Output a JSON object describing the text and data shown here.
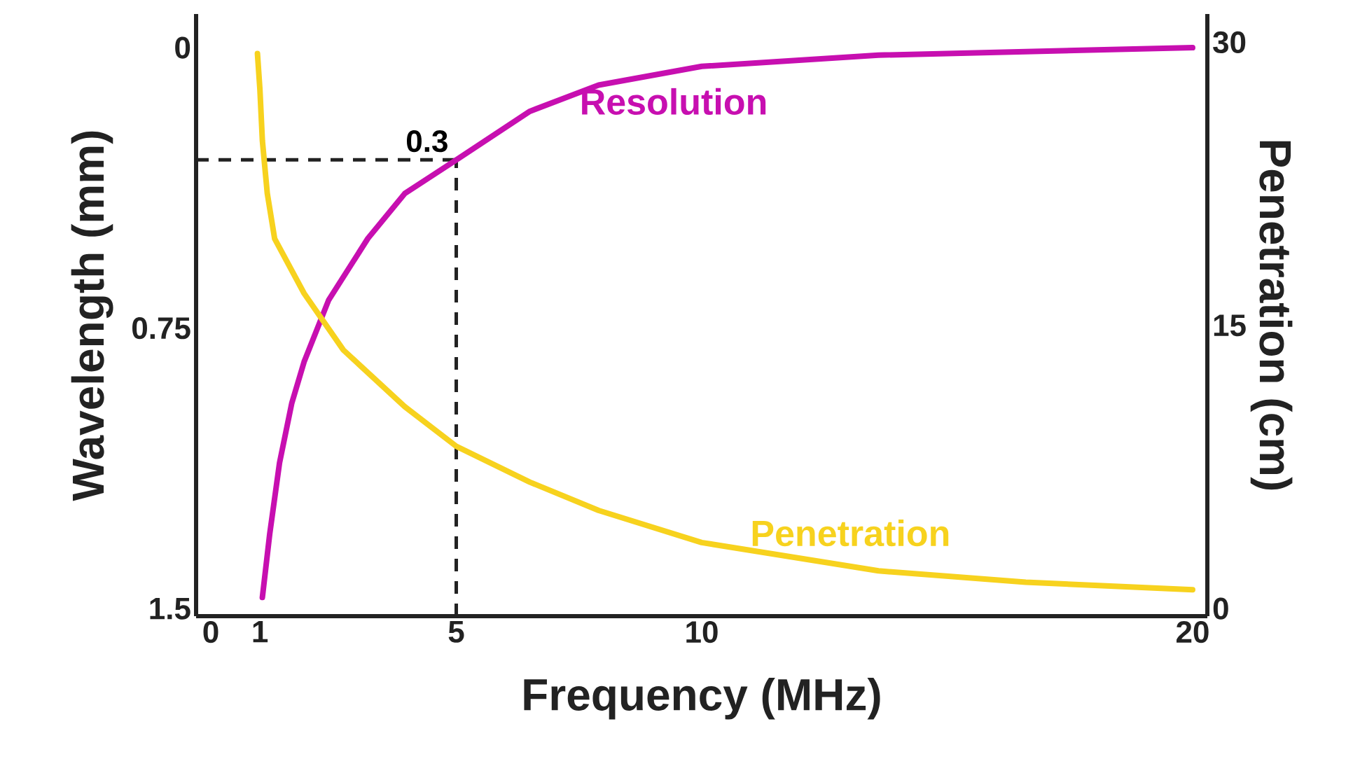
{
  "chart_data": {
    "type": "line",
    "xlabel": "Frequency (MHz)",
    "ylabel": "Wavelength (mm)",
    "y2label": "Penetration (cm)",
    "xlim": [
      -0.3,
      20.3
    ],
    "xticks": [
      0,
      1,
      5,
      10,
      20
    ],
    "ylim": [
      1.52,
      -0.09
    ],
    "yticks": [
      0,
      0.75,
      1.5
    ],
    "y2lim": [
      -0.4,
      31.5
    ],
    "y2ticks": [
      0,
      15,
      30
    ],
    "series": [
      {
        "name": "Resolution",
        "color": "#c70fb0",
        "x": [
          1.05,
          1.2,
          1.4,
          1.65,
          1.9,
          2.4,
          3.2,
          3.95,
          5,
          6.5,
          7.9,
          10,
          13.6,
          20
        ],
        "values": [
          1.47,
          1.3,
          1.11,
          0.95,
          0.84,
          0.675,
          0.51,
          0.39,
          0.3,
          0.17,
          0.1,
          0.05,
          0.02,
          0.0
        ]
      },
      {
        "name": "Penetration",
        "color": "#f7d21e",
        "axis": "y2",
        "x": [
          0.95,
          1.0,
          1.05,
          1.15,
          1.3,
          1.9,
          2.7,
          3.95,
          5,
          6.5,
          7.9,
          10,
          13.6,
          16.6,
          20
        ],
        "values": [
          29.4,
          27.5,
          24.8,
          22,
          19.6,
          16.7,
          13.7,
          10.7,
          8.6,
          6.7,
          5.2,
          3.5,
          2.0,
          1.4,
          1.0
        ]
      }
    ],
    "ref_lines": [
      {
        "axis": "y",
        "value": 0.3,
        "line_style": "dashed",
        "color": "#222222"
      },
      {
        "axis": "x",
        "value": 5,
        "line_style": "dashed",
        "color": "#222222"
      }
    ],
    "annotations": [
      {
        "text": "0.3",
        "x": 5,
        "y": 0.3
      }
    ],
    "line_style": "solid"
  }
}
